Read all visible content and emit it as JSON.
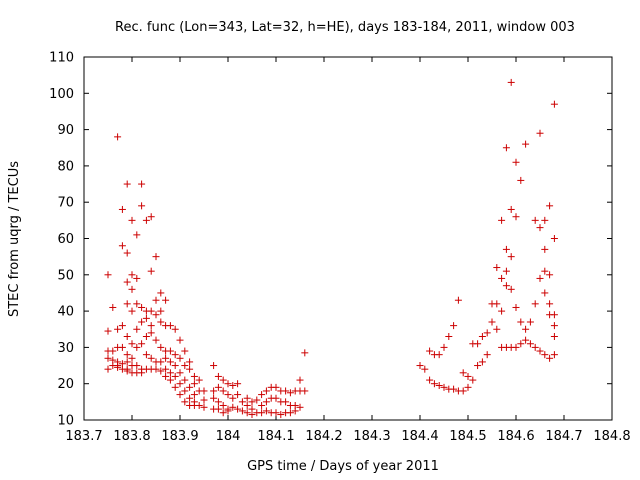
{
  "chart_data": {
    "type": "scatter",
    "title": "Rec. func (Lon=343, Lat=32, h=HE), days 183-184, 2011, window 003",
    "xlabel": "GPS time / Days of year 2011",
    "ylabel": "STEC from uqrg / TECUs",
    "xlim": [
      183.7,
      184.8
    ],
    "ylim": [
      10,
      110
    ],
    "xticks": [
      183.7,
      183.8,
      183.9,
      184.0,
      184.1,
      184.2,
      184.3,
      184.4,
      184.5,
      184.6,
      184.7,
      184.8
    ],
    "xtick_labels": [
      "183.7",
      "183.8",
      "183.9",
      "184",
      "184.1",
      "184.2",
      "184.3",
      "184.4",
      "184.5",
      "184.6",
      "184.7",
      "184.8"
    ],
    "yticks": [
      10,
      20,
      30,
      40,
      50,
      60,
      70,
      80,
      90,
      100,
      110
    ],
    "ytick_labels": [
      "10",
      "20",
      "30",
      "40",
      "50",
      "60",
      "70",
      "80",
      "90",
      "100",
      "110"
    ],
    "grid": false,
    "marker": "+",
    "color": "#cc0000",
    "series": [
      {
        "points": [
          [
            183.75,
            50
          ],
          [
            183.75,
            34.5
          ],
          [
            183.75,
            29
          ],
          [
            183.75,
            27
          ],
          [
            183.75,
            24
          ],
          [
            183.76,
            41
          ],
          [
            183.76,
            29
          ],
          [
            183.76,
            26.5
          ],
          [
            183.76,
            25
          ],
          [
            183.77,
            88
          ],
          [
            183.77,
            35
          ],
          [
            183.77,
            30
          ],
          [
            183.77,
            26
          ],
          [
            183.77,
            25
          ],
          [
            183.77,
            24.5
          ],
          [
            183.78,
            68
          ],
          [
            183.78,
            58
          ],
          [
            183.78,
            36
          ],
          [
            183.78,
            30
          ],
          [
            183.78,
            25.5
          ],
          [
            183.78,
            24
          ],
          [
            183.79,
            75
          ],
          [
            183.79,
            56
          ],
          [
            183.79,
            48
          ],
          [
            183.79,
            42
          ],
          [
            183.79,
            33
          ],
          [
            183.79,
            28
          ],
          [
            183.79,
            26
          ],
          [
            183.79,
            24
          ],
          [
            183.79,
            23.5
          ],
          [
            183.8,
            65
          ],
          [
            183.8,
            50
          ],
          [
            183.8,
            46
          ],
          [
            183.8,
            40
          ],
          [
            183.8,
            31
          ],
          [
            183.8,
            27
          ],
          [
            183.8,
            25
          ],
          [
            183.8,
            23
          ],
          [
            183.81,
            61
          ],
          [
            183.81,
            49
          ],
          [
            183.81,
            42
          ],
          [
            183.81,
            35
          ],
          [
            183.81,
            30
          ],
          [
            183.81,
            25
          ],
          [
            183.81,
            23
          ],
          [
            183.82,
            75
          ],
          [
            183.82,
            69
          ],
          [
            183.82,
            41
          ],
          [
            183.82,
            37
          ],
          [
            183.82,
            31
          ],
          [
            183.82,
            24
          ],
          [
            183.82,
            23
          ],
          [
            183.83,
            65
          ],
          [
            183.83,
            40
          ],
          [
            183.83,
            38
          ],
          [
            183.83,
            33
          ],
          [
            183.83,
            28
          ],
          [
            183.83,
            24
          ],
          [
            183.84,
            66
          ],
          [
            183.84,
            51
          ],
          [
            183.84,
            40
          ],
          [
            183.84,
            36
          ],
          [
            183.84,
            34
          ],
          [
            183.84,
            27
          ],
          [
            183.84,
            24
          ],
          [
            183.85,
            55
          ],
          [
            183.85,
            43
          ],
          [
            183.85,
            39
          ],
          [
            183.85,
            32
          ],
          [
            183.85,
            26
          ],
          [
            183.85,
            24
          ],
          [
            183.86,
            45
          ],
          [
            183.86,
            40
          ],
          [
            183.86,
            37
          ],
          [
            183.86,
            30
          ],
          [
            183.86,
            26
          ],
          [
            183.86,
            23.5
          ],
          [
            183.87,
            43
          ],
          [
            183.87,
            36
          ],
          [
            183.87,
            29
          ],
          [
            183.87,
            27
          ],
          [
            183.87,
            24
          ],
          [
            183.87,
            22
          ],
          [
            183.88,
            36
          ],
          [
            183.88,
            29
          ],
          [
            183.88,
            26
          ],
          [
            183.88,
            23
          ],
          [
            183.88,
            21
          ],
          [
            183.89,
            35
          ],
          [
            183.89,
            28
          ],
          [
            183.89,
            25
          ],
          [
            183.89,
            22
          ],
          [
            183.89,
            19
          ],
          [
            183.9,
            32
          ],
          [
            183.9,
            27
          ],
          [
            183.9,
            23
          ],
          [
            183.9,
            20
          ],
          [
            183.9,
            17
          ],
          [
            183.91,
            29
          ],
          [
            183.91,
            25
          ],
          [
            183.91,
            21
          ],
          [
            183.91,
            18
          ],
          [
            183.91,
            15
          ],
          [
            183.92,
            26
          ],
          [
            183.92,
            24
          ],
          [
            183.92,
            19
          ],
          [
            183.92,
            16
          ],
          [
            183.92,
            14
          ],
          [
            183.93,
            22
          ],
          [
            183.93,
            20
          ],
          [
            183.93,
            17
          ],
          [
            183.93,
            15
          ],
          [
            183.93,
            14
          ],
          [
            183.94,
            21
          ],
          [
            183.94,
            18
          ],
          [
            183.94,
            14
          ],
          [
            183.95,
            18
          ],
          [
            183.95,
            15.5
          ],
          [
            183.95,
            13.5
          ],
          [
            183.97,
            25
          ],
          [
            183.97,
            18
          ],
          [
            183.97,
            16
          ],
          [
            183.97,
            13
          ],
          [
            183.98,
            22
          ],
          [
            183.98,
            19
          ],
          [
            183.98,
            15
          ],
          [
            183.98,
            13
          ],
          [
            183.99,
            21
          ],
          [
            183.99,
            18
          ],
          [
            183.99,
            14
          ],
          [
            183.99,
            12
          ],
          [
            184.0,
            20
          ],
          [
            184.0,
            17
          ],
          [
            184.0,
            13
          ],
          [
            184.0,
            12.5
          ],
          [
            184.01,
            19.5
          ],
          [
            184.01,
            16
          ],
          [
            184.01,
            13.5
          ],
          [
            184.02,
            20
          ],
          [
            184.02,
            17
          ],
          [
            184.02,
            13
          ],
          [
            184.03,
            15
          ],
          [
            184.03,
            12.5
          ],
          [
            184.04,
            16
          ],
          [
            184.04,
            14
          ],
          [
            184.04,
            12
          ],
          [
            184.05,
            15
          ],
          [
            184.05,
            13
          ],
          [
            184.05,
            11.5
          ],
          [
            184.06,
            15.5
          ],
          [
            184.06,
            12
          ],
          [
            184.07,
            17
          ],
          [
            184.07,
            14
          ],
          [
            184.07,
            12
          ],
          [
            184.08,
            18
          ],
          [
            184.08,
            15
          ],
          [
            184.08,
            12.5
          ],
          [
            184.09,
            19
          ],
          [
            184.09,
            16
          ],
          [
            184.09,
            12
          ],
          [
            184.1,
            19
          ],
          [
            184.1,
            16
          ],
          [
            184.1,
            12
          ],
          [
            184.11,
            18
          ],
          [
            184.11,
            15
          ],
          [
            184.11,
            11.5
          ],
          [
            184.12,
            18
          ],
          [
            184.12,
            15
          ],
          [
            184.12,
            12
          ],
          [
            184.13,
            17.5
          ],
          [
            184.13,
            14
          ],
          [
            184.13,
            12
          ],
          [
            184.14,
            18
          ],
          [
            184.14,
            14
          ],
          [
            184.14,
            12.5
          ],
          [
            184.15,
            21
          ],
          [
            184.15,
            18
          ],
          [
            184.15,
            13.5
          ],
          [
            184.16,
            28.5
          ],
          [
            184.16,
            18
          ],
          [
            184.4,
            25
          ],
          [
            184.41,
            24
          ],
          [
            184.42,
            29
          ],
          [
            184.42,
            21
          ],
          [
            184.43,
            28
          ],
          [
            184.43,
            20
          ],
          [
            184.44,
            28
          ],
          [
            184.44,
            19.5
          ],
          [
            184.45,
            30
          ],
          [
            184.45,
            19
          ],
          [
            184.46,
            33
          ],
          [
            184.46,
            18.5
          ],
          [
            184.47,
            36
          ],
          [
            184.47,
            18.5
          ],
          [
            184.48,
            43
          ],
          [
            184.48,
            18
          ],
          [
            184.49,
            23
          ],
          [
            184.49,
            18
          ],
          [
            184.5,
            22
          ],
          [
            184.5,
            19
          ],
          [
            184.51,
            31
          ],
          [
            184.51,
            21
          ],
          [
            184.52,
            31
          ],
          [
            184.52,
            25
          ],
          [
            184.53,
            33
          ],
          [
            184.53,
            26
          ],
          [
            184.54,
            34
          ],
          [
            184.54,
            28
          ],
          [
            184.55,
            42
          ],
          [
            184.55,
            37
          ],
          [
            184.56,
            52
          ],
          [
            184.56,
            42
          ],
          [
            184.56,
            35
          ],
          [
            184.57,
            65
          ],
          [
            184.57,
            49
          ],
          [
            184.57,
            40
          ],
          [
            184.57,
            30
          ],
          [
            184.58,
            85
          ],
          [
            184.58,
            57
          ],
          [
            184.58,
            51
          ],
          [
            184.58,
            47
          ],
          [
            184.58,
            30
          ],
          [
            184.59,
            103
          ],
          [
            184.59,
            68
          ],
          [
            184.59,
            55
          ],
          [
            184.59,
            46
          ],
          [
            184.59,
            30
          ],
          [
            184.6,
            81
          ],
          [
            184.6,
            66
          ],
          [
            184.6,
            41
          ],
          [
            184.6,
            30
          ],
          [
            184.61,
            76
          ],
          [
            184.61,
            37
          ],
          [
            184.61,
            31
          ],
          [
            184.62,
            86
          ],
          [
            184.62,
            35
          ],
          [
            184.62,
            32
          ],
          [
            184.63,
            37
          ],
          [
            184.63,
            31
          ],
          [
            184.64,
            65
          ],
          [
            184.64,
            42
          ],
          [
            184.64,
            30
          ],
          [
            184.65,
            89
          ],
          [
            184.65,
            63
          ],
          [
            184.65,
            49
          ],
          [
            184.65,
            29
          ],
          [
            184.66,
            65
          ],
          [
            184.66,
            57
          ],
          [
            184.66,
            51
          ],
          [
            184.66,
            45
          ],
          [
            184.66,
            28
          ],
          [
            184.67,
            69
          ],
          [
            184.67,
            50
          ],
          [
            184.67,
            42
          ],
          [
            184.67,
            39
          ],
          [
            184.67,
            27
          ],
          [
            184.68,
            97
          ],
          [
            184.68,
            60
          ],
          [
            184.68,
            39
          ],
          [
            184.68,
            36
          ],
          [
            184.68,
            33
          ],
          [
            184.68,
            28
          ]
        ]
      }
    ]
  }
}
